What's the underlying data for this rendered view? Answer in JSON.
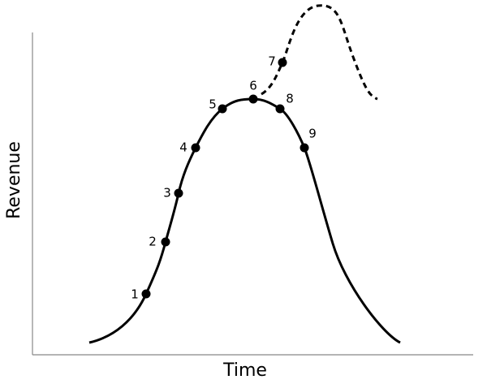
{
  "axes": {
    "y_label": "Revenue",
    "x_label": "Time"
  },
  "points": [
    {
      "label": "1"
    },
    {
      "label": "2"
    },
    {
      "label": "3"
    },
    {
      "label": "4"
    },
    {
      "label": "5"
    },
    {
      "label": "6"
    },
    {
      "label": "7"
    },
    {
      "label": "8"
    },
    {
      "label": "9"
    }
  ]
}
